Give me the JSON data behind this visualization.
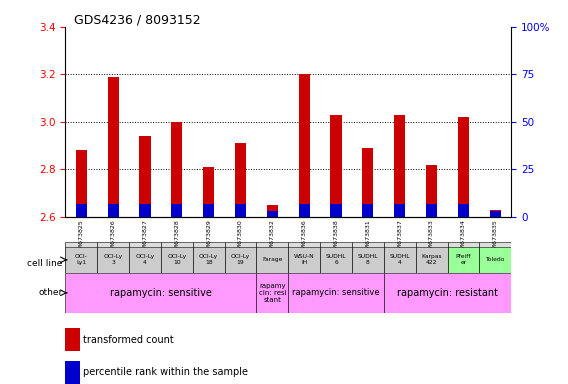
{
  "title": "GDS4236 / 8093152",
  "samples": [
    "GSM673825",
    "GSM673826",
    "GSM673827",
    "GSM673828",
    "GSM673829",
    "GSM673830",
    "GSM673832",
    "GSM673836",
    "GSM673838",
    "GSM673831",
    "GSM673837",
    "GSM673833",
    "GSM673834",
    "GSM673835"
  ],
  "transformed_count": [
    2.88,
    3.19,
    2.94,
    3.0,
    2.81,
    2.91,
    2.65,
    3.2,
    3.03,
    2.89,
    3.03,
    2.82,
    3.02,
    2.63
  ],
  "bar_base": 2.6,
  "ymin": 2.6,
  "ymax": 3.4,
  "y2min": 0,
  "y2max": 100,
  "yticks": [
    2.6,
    2.8,
    3.0,
    3.2,
    3.4
  ],
  "y2ticks": [
    0,
    25,
    50,
    75,
    100
  ],
  "cell_lines": [
    "OCI-\nLy1",
    "OCI-Ly\n3",
    "OCI-Ly\n4",
    "OCI-Ly\n10",
    "OCI-Ly\n18",
    "OCI-Ly\n19",
    "Farage",
    "WSU-N\nIH",
    "SUDHL\n6",
    "SUDHL\n8",
    "SUDHL\n4",
    "Karpas\n422",
    "Pfeiff\ner",
    "Toledo"
  ],
  "cell_line_colors": [
    "#cccccc",
    "#cccccc",
    "#cccccc",
    "#cccccc",
    "#cccccc",
    "#cccccc",
    "#cccccc",
    "#cccccc",
    "#cccccc",
    "#cccccc",
    "#cccccc",
    "#cccccc",
    "#99ff99",
    "#99ff99"
  ],
  "other_groups": [
    {
      "text": "rapamycin: sensitive",
      "start": 0,
      "end": 5,
      "color": "#ff99ff",
      "fontsize": 7
    },
    {
      "text": "rapamy\ncin: resi\nstant",
      "start": 6,
      "end": 6,
      "color": "#ff99ff",
      "fontsize": 5
    },
    {
      "text": "rapamycin: sensitive",
      "start": 7,
      "end": 9,
      "color": "#ff99ff",
      "fontsize": 6
    },
    {
      "text": "rapamycin: resistant",
      "start": 10,
      "end": 13,
      "color": "#ff99ff",
      "fontsize": 7
    }
  ],
  "red_color": "#cc0000",
  "blue_color": "#0000cc",
  "percentile_values": [
    7,
    7,
    7,
    7,
    7,
    7,
    3,
    7,
    7,
    7,
    7,
    7,
    7,
    3
  ]
}
